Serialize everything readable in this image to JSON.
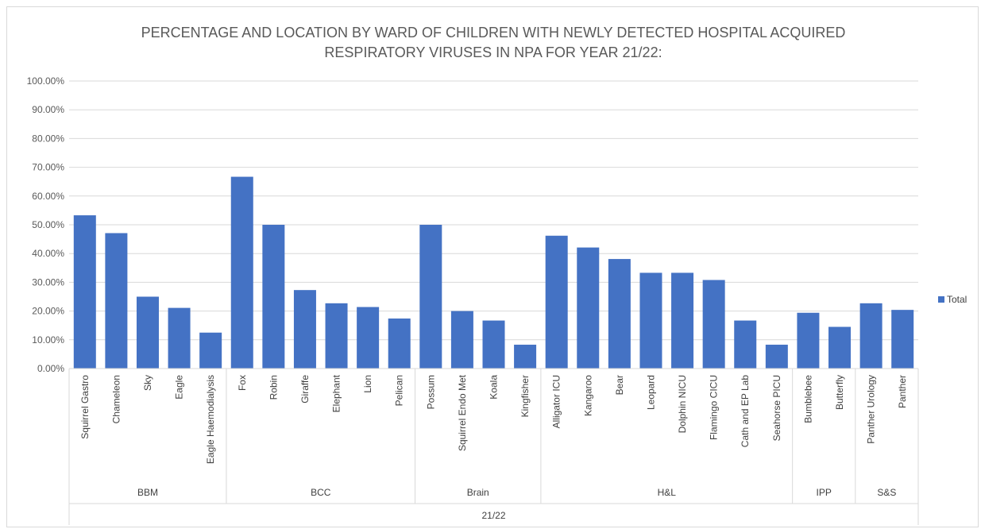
{
  "chart_data": {
    "type": "bar",
    "title": "PERCENTAGE AND LOCATION BY WARD OF CHILDREN WITH NEWLY DETECTED HOSPITAL ACQUIRED",
    "subtitle": "RESPIRATORY VIRUSES IN NPA FOR YEAR 21/22:",
    "ylim": [
      0,
      100
    ],
    "y_ticks": [
      "0.00%",
      "10.00%",
      "20.00%",
      "30.00%",
      "40.00%",
      "50.00%",
      "60.00%",
      "70.00%",
      "80.00%",
      "90.00%",
      "100.00%"
    ],
    "categories": [
      "Squirrel Gastro",
      "Chameleon",
      "Sky",
      "Eagle",
      "Eagle Haemodialysis",
      "Fox",
      "Robin",
      "Giraffe",
      "Elephant",
      "Lion",
      "Pelican",
      "Possum",
      "Squirrel Endo Met",
      "Koala",
      "Kingfisher",
      "Alligator ICU",
      "Kangaroo",
      "Bear",
      "Leopard",
      "Dolphin NICU",
      "Flamingo CICU",
      "Cath and EP Lab",
      "Seahorse PICU",
      "Bumblebee",
      "Butterfly",
      "Panther Urology",
      "Panther"
    ],
    "groups": [
      {
        "name": "BBM",
        "count": 5
      },
      {
        "name": "BCC",
        "count": 6
      },
      {
        "name": "Brain",
        "count": 4
      },
      {
        "name": "H&L",
        "count": 8
      },
      {
        "name": "IPP",
        "count": 2
      },
      {
        "name": "S&S",
        "count": 2
      }
    ],
    "outer_group": "21/22",
    "series": [
      {
        "name": "Total",
        "color": "#4472c4",
        "values": [
          53.3,
          47.1,
          25.0,
          21.1,
          12.5,
          66.7,
          50.0,
          27.3,
          22.7,
          21.4,
          17.4,
          50.0,
          20.0,
          16.7,
          8.3,
          46.2,
          42.1,
          38.1,
          33.3,
          33.3,
          30.8,
          16.7,
          8.3,
          19.4,
          14.5,
          22.7,
          20.4
        ]
      }
    ],
    "grid": true,
    "legend_position": "right"
  }
}
